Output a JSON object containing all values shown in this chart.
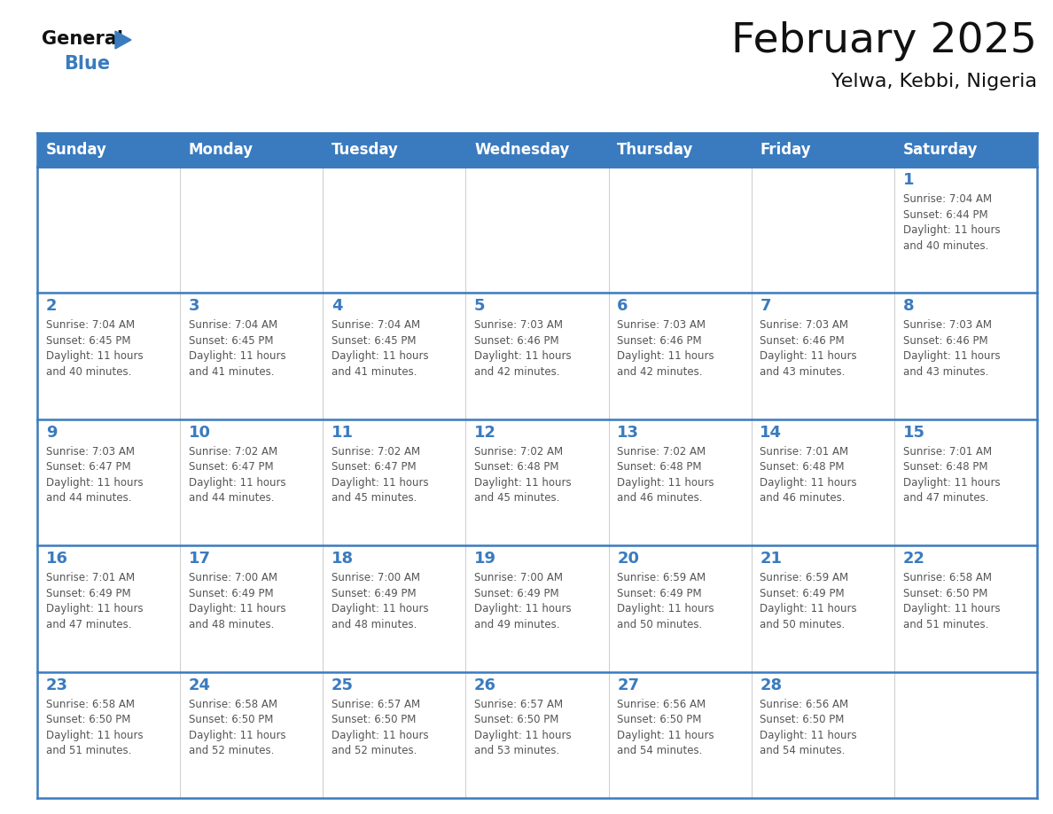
{
  "title": "February 2025",
  "subtitle": "Yelwa, Kebbi, Nigeria",
  "header_bg": "#3a7bbf",
  "header_text": "#ffffff",
  "days_of_week": [
    "Sunday",
    "Monday",
    "Tuesday",
    "Wednesday",
    "Thursday",
    "Friday",
    "Saturday"
  ],
  "cell_bg": "#ffffff",
  "cell_border_color": "#cccccc",
  "row_separator_color": "#3a7bbf",
  "day_num_color": "#3a7bbf",
  "text_color": "#555555",
  "calendar": [
    [
      null,
      null,
      null,
      null,
      null,
      null,
      {
        "day": 1,
        "sunrise": "7:04 AM",
        "sunset": "6:44 PM",
        "daylight": "11 hours\nand 40 minutes."
      }
    ],
    [
      {
        "day": 2,
        "sunrise": "7:04 AM",
        "sunset": "6:45 PM",
        "daylight": "11 hours\nand 40 minutes."
      },
      {
        "day": 3,
        "sunrise": "7:04 AM",
        "sunset": "6:45 PM",
        "daylight": "11 hours\nand 41 minutes."
      },
      {
        "day": 4,
        "sunrise": "7:04 AM",
        "sunset": "6:45 PM",
        "daylight": "11 hours\nand 41 minutes."
      },
      {
        "day": 5,
        "sunrise": "7:03 AM",
        "sunset": "6:46 PM",
        "daylight": "11 hours\nand 42 minutes."
      },
      {
        "day": 6,
        "sunrise": "7:03 AM",
        "sunset": "6:46 PM",
        "daylight": "11 hours\nand 42 minutes."
      },
      {
        "day": 7,
        "sunrise": "7:03 AM",
        "sunset": "6:46 PM",
        "daylight": "11 hours\nand 43 minutes."
      },
      {
        "day": 8,
        "sunrise": "7:03 AM",
        "sunset": "6:46 PM",
        "daylight": "11 hours\nand 43 minutes."
      }
    ],
    [
      {
        "day": 9,
        "sunrise": "7:03 AM",
        "sunset": "6:47 PM",
        "daylight": "11 hours\nand 44 minutes."
      },
      {
        "day": 10,
        "sunrise": "7:02 AM",
        "sunset": "6:47 PM",
        "daylight": "11 hours\nand 44 minutes."
      },
      {
        "day": 11,
        "sunrise": "7:02 AM",
        "sunset": "6:47 PM",
        "daylight": "11 hours\nand 45 minutes."
      },
      {
        "day": 12,
        "sunrise": "7:02 AM",
        "sunset": "6:48 PM",
        "daylight": "11 hours\nand 45 minutes."
      },
      {
        "day": 13,
        "sunrise": "7:02 AM",
        "sunset": "6:48 PM",
        "daylight": "11 hours\nand 46 minutes."
      },
      {
        "day": 14,
        "sunrise": "7:01 AM",
        "sunset": "6:48 PM",
        "daylight": "11 hours\nand 46 minutes."
      },
      {
        "day": 15,
        "sunrise": "7:01 AM",
        "sunset": "6:48 PM",
        "daylight": "11 hours\nand 47 minutes."
      }
    ],
    [
      {
        "day": 16,
        "sunrise": "7:01 AM",
        "sunset": "6:49 PM",
        "daylight": "11 hours\nand 47 minutes."
      },
      {
        "day": 17,
        "sunrise": "7:00 AM",
        "sunset": "6:49 PM",
        "daylight": "11 hours\nand 48 minutes."
      },
      {
        "day": 18,
        "sunrise": "7:00 AM",
        "sunset": "6:49 PM",
        "daylight": "11 hours\nand 48 minutes."
      },
      {
        "day": 19,
        "sunrise": "7:00 AM",
        "sunset": "6:49 PM",
        "daylight": "11 hours\nand 49 minutes."
      },
      {
        "day": 20,
        "sunrise": "6:59 AM",
        "sunset": "6:49 PM",
        "daylight": "11 hours\nand 50 minutes."
      },
      {
        "day": 21,
        "sunrise": "6:59 AM",
        "sunset": "6:49 PM",
        "daylight": "11 hours\nand 50 minutes."
      },
      {
        "day": 22,
        "sunrise": "6:58 AM",
        "sunset": "6:50 PM",
        "daylight": "11 hours\nand 51 minutes."
      }
    ],
    [
      {
        "day": 23,
        "sunrise": "6:58 AM",
        "sunset": "6:50 PM",
        "daylight": "11 hours\nand 51 minutes."
      },
      {
        "day": 24,
        "sunrise": "6:58 AM",
        "sunset": "6:50 PM",
        "daylight": "11 hours\nand 52 minutes."
      },
      {
        "day": 25,
        "sunrise": "6:57 AM",
        "sunset": "6:50 PM",
        "daylight": "11 hours\nand 52 minutes."
      },
      {
        "day": 26,
        "sunrise": "6:57 AM",
        "sunset": "6:50 PM",
        "daylight": "11 hours\nand 53 minutes."
      },
      {
        "day": 27,
        "sunrise": "6:56 AM",
        "sunset": "6:50 PM",
        "daylight": "11 hours\nand 54 minutes."
      },
      {
        "day": 28,
        "sunrise": "6:56 AM",
        "sunset": "6:50 PM",
        "daylight": "11 hours\nand 54 minutes."
      },
      null
    ]
  ],
  "logo_text1": "General",
  "logo_text2": "Blue",
  "logo_color1": "#111111",
  "logo_color2": "#3a7bbf",
  "logo_triangle_color": "#3a7bbf",
  "title_fontsize": 34,
  "subtitle_fontsize": 16,
  "header_fontsize": 12,
  "day_num_fontsize": 13,
  "cell_text_fontsize": 8.5
}
